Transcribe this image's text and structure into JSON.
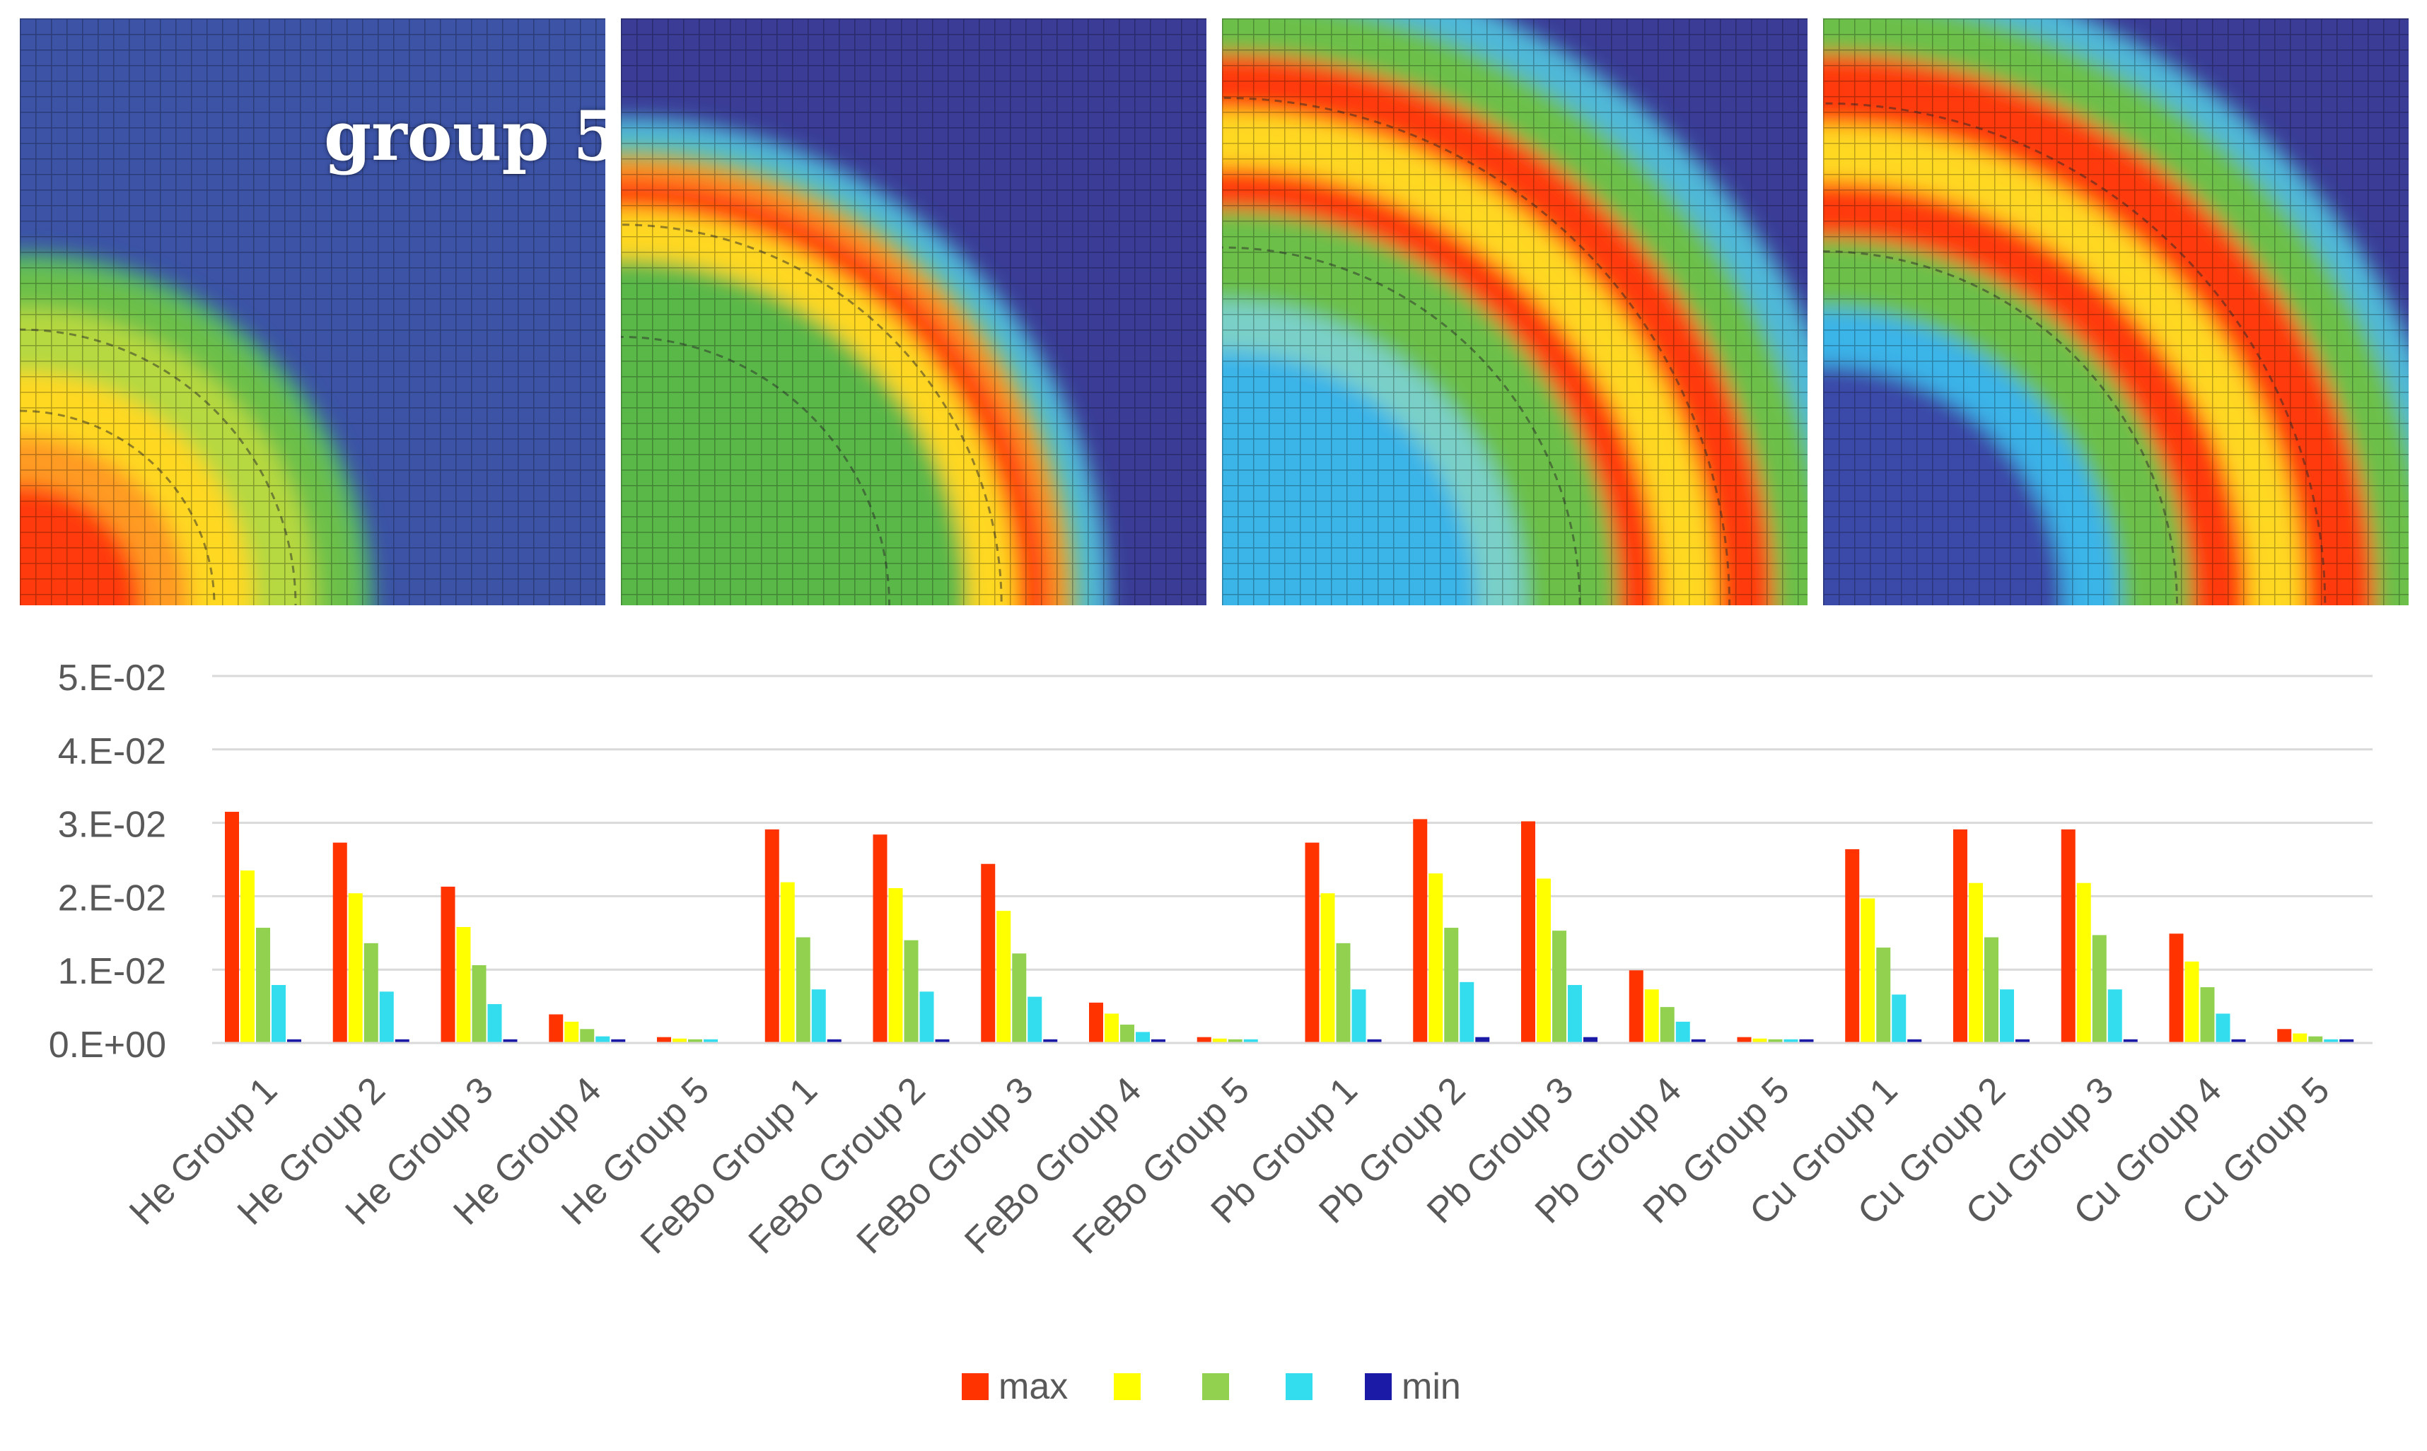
{
  "panels": [
    {
      "label": "group 5",
      "mode": 1
    },
    {
      "label": "",
      "mode": 2
    },
    {
      "label": "",
      "mode": 3
    },
    {
      "label": "",
      "mode": 4
    }
  ],
  "colors": {
    "max": "#ff3300",
    "yellow": "#ffff00",
    "green": "#92d050",
    "cyan": "#33ddee",
    "min": "#1a1aa6",
    "grid": "#d9d9d9",
    "axis_text": "#595959",
    "map_bg": "#3a3c96"
  },
  "chart_data": {
    "type": "bar",
    "title": "",
    "xlabel": "",
    "ylabel": "",
    "ylim": [
      0,
      0.05
    ],
    "y_ticks": [
      {
        "value": 0.0,
        "label": "0.E+00"
      },
      {
        "value": 0.01,
        "label": "1.E-02"
      },
      {
        "value": 0.02,
        "label": "2.E-02"
      },
      {
        "value": 0.03,
        "label": "3.E-02"
      },
      {
        "value": 0.04,
        "label": "4.E-02"
      },
      {
        "value": 0.05,
        "label": "5.E-02"
      }
    ],
    "grid": true,
    "legend_position": "bottom",
    "categories": [
      "He Group 1",
      "He Group 2",
      "He Group 3",
      "He Group 4",
      "He Group 5",
      "FeBo Group 1",
      "FeBo Group 2",
      "FeBo Group 3",
      "FeBo Group 4",
      "FeBo Group 5",
      "Pb Group 1",
      "Pb Group 2",
      "Pb Group 3",
      "Pb Group 4",
      "Pb Group 5",
      "Cu Group 1",
      "Cu Group 2",
      "Cu Group 3",
      "Cu Group 4",
      "Cu Group 5"
    ],
    "series": [
      {
        "name": "max",
        "color_key": "max",
        "values": [
          0.0315,
          0.0273,
          0.0213,
          0.0039,
          0.0008,
          0.0291,
          0.0284,
          0.0244,
          0.0055,
          0.0008,
          0.0273,
          0.0305,
          0.0302,
          0.0099,
          0.0008,
          0.0264,
          0.0291,
          0.0291,
          0.0149,
          0.0019
        ]
      },
      {
        "name": "",
        "color_key": "yellow",
        "values": [
          0.0235,
          0.0204,
          0.0158,
          0.0029,
          0.0006,
          0.0219,
          0.0211,
          0.018,
          0.004,
          0.0006,
          0.0204,
          0.0231,
          0.0224,
          0.0073,
          0.0006,
          0.0197,
          0.0218,
          0.0218,
          0.0111,
          0.0013
        ]
      },
      {
        "name": "",
        "color_key": "green",
        "values": [
          0.0157,
          0.0136,
          0.0106,
          0.0019,
          0.0005,
          0.0144,
          0.014,
          0.0122,
          0.0025,
          0.0005,
          0.0136,
          0.0157,
          0.0153,
          0.0049,
          0.0005,
          0.013,
          0.0144,
          0.0147,
          0.0076,
          0.0009
        ]
      },
      {
        "name": "",
        "color_key": "cyan",
        "values": [
          0.0079,
          0.007,
          0.0053,
          0.0009,
          0.0005,
          0.0073,
          0.007,
          0.0063,
          0.0015,
          0.0005,
          0.0073,
          0.0083,
          0.0079,
          0.0029,
          0.0005,
          0.0066,
          0.0073,
          0.0073,
          0.004,
          0.0005
        ]
      },
      {
        "name": "min",
        "color_key": "min",
        "values": [
          0.0005,
          0.0005,
          0.0005,
          0.0005,
          0.0001,
          0.0005,
          0.0005,
          0.0005,
          0.0005,
          0.0001,
          0.0005,
          0.0008,
          0.0008,
          0.0005,
          0.0005,
          0.0005,
          0.0005,
          0.0005,
          0.0005,
          0.0005
        ]
      }
    ]
  }
}
